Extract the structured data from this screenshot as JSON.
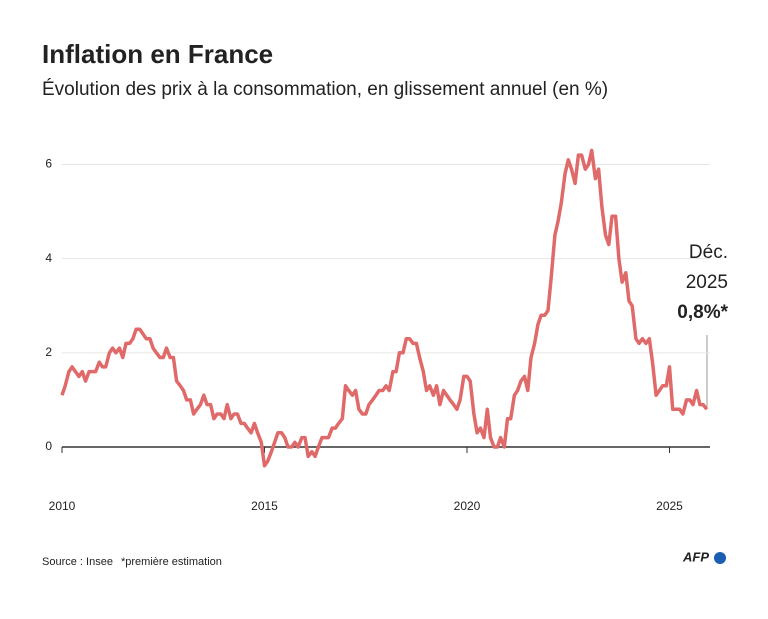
{
  "chart_data": {
    "type": "line",
    "title": "Inflation en France",
    "subtitle": "Évolution des prix à la consommation, en glissement annuel (en %)",
    "annotation": [
      "Déc.",
      "2025",
      "0,8%*"
    ],
    "source": "Source : Insee",
    "note": "*première estimation",
    "credit": "AFP",
    "xlim": [
      2010,
      2026
    ],
    "xticks": [
      2010,
      2015,
      2020,
      2025
    ],
    "ylim": [
      -0.5,
      6.5
    ],
    "yticks": [
      0,
      2,
      4,
      6
    ],
    "grid": true,
    "x": [
      2010,
      2010.08,
      2010.17,
      2010.25,
      2010.33,
      2010.42,
      2010.5,
      2010.58,
      2010.67,
      2010.75,
      2010.83,
      2010.92,
      2011,
      2011.08,
      2011.17,
      2011.25,
      2011.33,
      2011.42,
      2011.5,
      2011.58,
      2011.67,
      2011.75,
      2011.83,
      2011.92,
      2012,
      2012.08,
      2012.17,
      2012.25,
      2012.33,
      2012.42,
      2012.5,
      2012.58,
      2012.67,
      2012.75,
      2012.83,
      2012.92,
      2013,
      2013.08,
      2013.17,
      2013.25,
      2013.33,
      2013.42,
      2013.5,
      2013.58,
      2013.67,
      2013.75,
      2013.83,
      2013.92,
      2014,
      2014.08,
      2014.17,
      2014.25,
      2014.33,
      2014.42,
      2014.5,
      2014.58,
      2014.67,
      2014.75,
      2014.83,
      2014.92,
      2015,
      2015.08,
      2015.17,
      2015.25,
      2015.33,
      2015.42,
      2015.5,
      2015.58,
      2015.67,
      2015.75,
      2015.83,
      2015.92,
      2016,
      2016.08,
      2016.17,
      2016.25,
      2016.33,
      2016.42,
      2016.5,
      2016.58,
      2016.67,
      2016.75,
      2016.83,
      2016.92,
      2017,
      2017.08,
      2017.17,
      2017.25,
      2017.33,
      2017.42,
      2017.5,
      2017.58,
      2017.67,
      2017.75,
      2017.83,
      2017.92,
      2018,
      2018.08,
      2018.17,
      2018.25,
      2018.33,
      2018.42,
      2018.5,
      2018.58,
      2018.67,
      2018.75,
      2018.83,
      2018.92,
      2019,
      2019.08,
      2019.17,
      2019.25,
      2019.33,
      2019.42,
      2019.5,
      2019.58,
      2019.67,
      2019.75,
      2019.83,
      2019.92,
      2020,
      2020.08,
      2020.17,
      2020.25,
      2020.33,
      2020.42,
      2020.5,
      2020.58,
      2020.67,
      2020.75,
      2020.83,
      2020.92,
      2021,
      2021.08,
      2021.17,
      2021.25,
      2021.33,
      2021.42,
      2021.5,
      2021.58,
      2021.67,
      2021.75,
      2021.83,
      2021.92,
      2022,
      2022.08,
      2022.17,
      2022.25,
      2022.33,
      2022.42,
      2022.5,
      2022.58,
      2022.67,
      2022.75,
      2022.83,
      2022.92,
      2023,
      2023.08,
      2023.17,
      2023.25,
      2023.33,
      2023.42,
      2023.5,
      2023.58,
      2023.67,
      2023.75,
      2023.83,
      2023.92,
      2024,
      2024.08,
      2024.17,
      2024.25,
      2024.33,
      2024.42,
      2024.5,
      2024.58,
      2024.67,
      2024.75,
      2024.83,
      2024.92,
      2025,
      2025.08,
      2025.17,
      2025.25,
      2025.33,
      2025.42,
      2025.5,
      2025.58,
      2025.67,
      2025.75,
      2025.83,
      2025.92
    ],
    "color": "#e06a6a",
    "values": [
      1.1,
      1.3,
      1.6,
      1.7,
      1.6,
      1.5,
      1.6,
      1.4,
      1.6,
      1.6,
      1.6,
      1.8,
      1.7,
      1.7,
      2.0,
      2.1,
      2.0,
      2.1,
      1.9,
      2.2,
      2.2,
      2.3,
      2.5,
      2.5,
      2.4,
      2.3,
      2.3,
      2.1,
      2.0,
      1.9,
      1.9,
      2.1,
      1.9,
      1.9,
      1.4,
      1.3,
      1.2,
      1.0,
      1.0,
      0.7,
      0.8,
      0.9,
      1.1,
      0.9,
      0.9,
      0.6,
      0.7,
      0.7,
      0.6,
      0.9,
      0.6,
      0.7,
      0.7,
      0.5,
      0.5,
      0.4,
      0.3,
      0.5,
      0.3,
      0.1,
      -0.4,
      -0.3,
      -0.1,
      0.1,
      0.3,
      0.3,
      0.2,
      0.0,
      0.0,
      0.1,
      0.0,
      0.2,
      0.2,
      -0.2,
      -0.1,
      -0.2,
      0.0,
      0.2,
      0.2,
      0.2,
      0.4,
      0.4,
      0.5,
      0.6,
      1.3,
      1.2,
      1.1,
      1.2,
      0.8,
      0.7,
      0.7,
      0.9,
      1.0,
      1.1,
      1.2,
      1.2,
      1.3,
      1.2,
      1.6,
      1.6,
      2.0,
      2.0,
      2.3,
      2.3,
      2.2,
      2.2,
      1.9,
      1.6,
      1.2,
      1.3,
      1.1,
      1.3,
      0.9,
      1.2,
      1.1,
      1.0,
      0.9,
      0.8,
      1.0,
      1.5,
      1.5,
      1.4,
      0.7,
      0.3,
      0.4,
      0.2,
      0.8,
      0.2,
      0.0,
      0.0,
      0.2,
      0.0,
      0.6,
      0.6,
      1.1,
      1.2,
      1.4,
      1.5,
      1.2,
      1.9,
      2.2,
      2.6,
      2.8,
      2.8,
      2.9,
      3.6,
      4.5,
      4.8,
      5.2,
      5.8,
      6.1,
      5.9,
      5.6,
      6.2,
      6.2,
      5.9,
      6.0,
      6.3,
      5.7,
      5.9,
      5.1,
      4.5,
      4.3,
      4.9,
      4.9,
      4.0,
      3.5,
      3.7,
      3.1,
      3.0,
      2.3,
      2.2,
      2.3,
      2.2,
      2.3,
      1.8,
      1.1,
      1.2,
      1.3,
      1.3,
      1.7,
      0.8,
      0.8,
      0.8,
      0.7,
      1.0,
      1.0,
      0.9,
      1.2,
      0.9,
      0.9,
      0.8
    ]
  }
}
